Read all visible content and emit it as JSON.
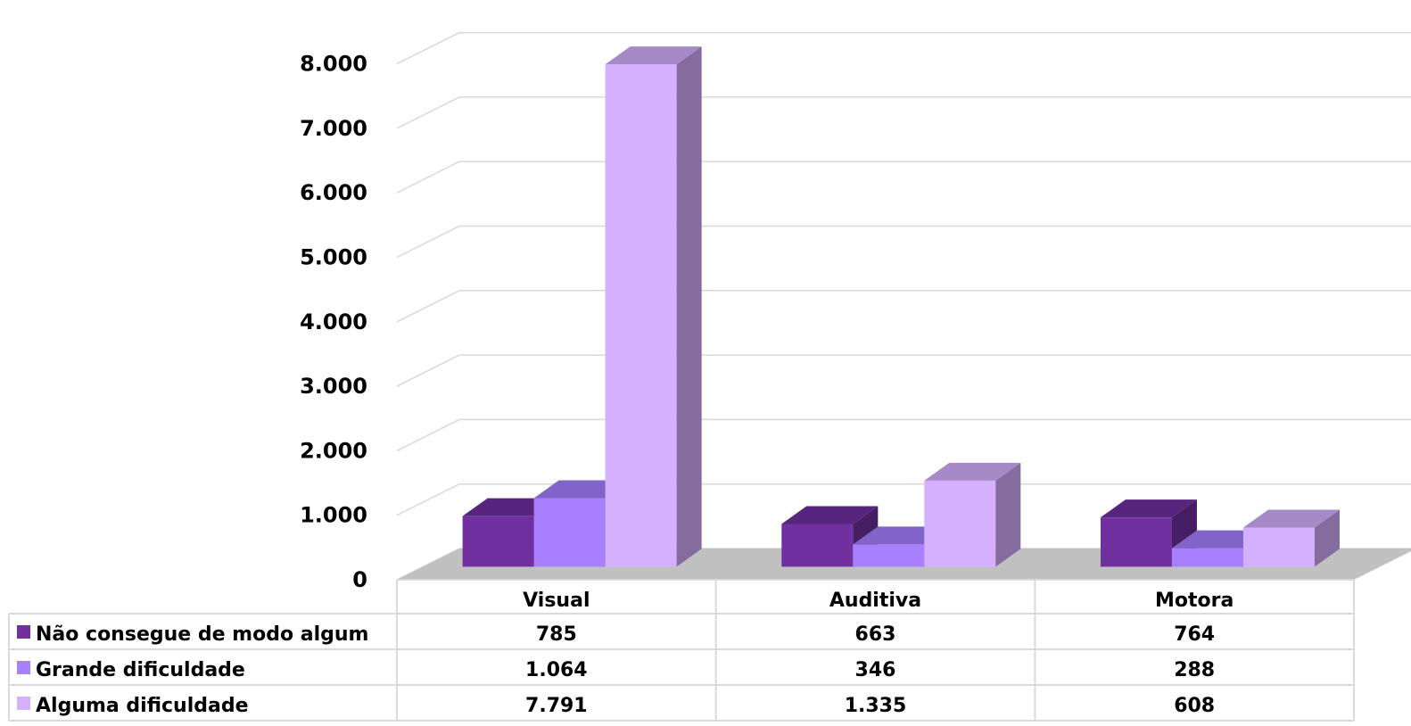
{
  "chart_data": {
    "type": "bar",
    "categories": [
      "Visual",
      "Auditiva",
      "Motora"
    ],
    "series": [
      {
        "name": "Não consegue de modo algum",
        "values": [
          785,
          663,
          764
        ],
        "labels": [
          "785",
          "663",
          "764"
        ],
        "color": "#7030A0"
      },
      {
        "name": "Grande dificuldade",
        "values": [
          1064,
          346,
          288
        ],
        "labels": [
          "1.064",
          "346",
          "288"
        ],
        "color": "#A77FFF"
      },
      {
        "name": "Alguma dificuldade",
        "values": [
          7791,
          1335,
          608
        ],
        "labels": [
          "7.791",
          "1.335",
          "608"
        ],
        "color": "#D5B0FF"
      }
    ],
    "yticks": [
      0,
      1000,
      2000,
      3000,
      4000,
      5000,
      6000,
      7000,
      8000
    ],
    "ytick_labels": [
      "0",
      "1.000",
      "2.000",
      "3.000",
      "4.000",
      "5.000",
      "6.000",
      "7.000",
      "8.000"
    ],
    "ylim": [
      0,
      8000
    ],
    "grid": true,
    "legend": "data-table",
    "floor_color": "#C0C0C0"
  }
}
